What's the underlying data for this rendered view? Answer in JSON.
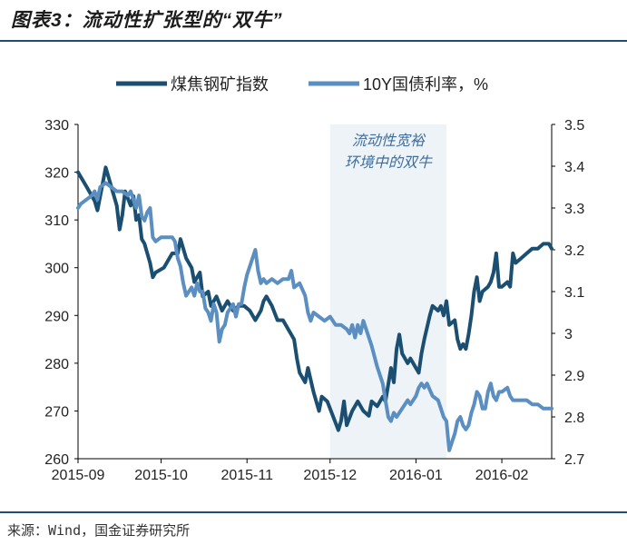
{
  "header": {
    "title": "图表3：流动性扩张型的“双牛”"
  },
  "footer": {
    "source": "来源：Wind，国金证券研究所"
  },
  "chart_data": {
    "type": "line",
    "title": "图表3：流动性扩张型的“双牛”",
    "x_ticks": [
      "2015-09",
      "2015-10",
      "2015-11",
      "2015-12",
      "2016-01",
      "2016-02"
    ],
    "x_tick_days": [
      0,
      30,
      61,
      91,
      122,
      153
    ],
    "y_left": {
      "min": 260,
      "max": 330,
      "step": 10,
      "ticks": [
        "260",
        "270",
        "280",
        "290",
        "300",
        "310",
        "320",
        "330"
      ]
    },
    "y_right": {
      "min": 2.7,
      "max": 3.5,
      "step": 0.1,
      "ticks": [
        "2.7",
        "2.8",
        "2.9",
        "3",
        "3.1",
        "3.2",
        "3.3",
        "3.4",
        "3.5"
      ]
    },
    "x_max_day": 171,
    "highlight": {
      "from_day": 91,
      "to_day": 133,
      "label_line1": "流动性宽裕",
      "label_line2": "环境中的双牛",
      "fill": "#eef3f8",
      "text_color": "#3e6d9c"
    },
    "legend_position": "top",
    "series": [
      {
        "name": "煤焦钢矿指数",
        "axis": "left",
        "color": "#1b4f72",
        "points": [
          [
            0,
            320
          ],
          [
            3,
            317
          ],
          [
            6,
            314
          ],
          [
            7,
            312
          ],
          [
            9,
            318
          ],
          [
            10,
            321
          ],
          [
            12,
            317
          ],
          [
            14,
            313
          ],
          [
            15,
            308
          ],
          [
            16,
            311
          ],
          [
            17,
            316
          ],
          [
            19,
            313
          ],
          [
            20,
            315
          ],
          [
            21,
            310
          ],
          [
            22,
            311
          ],
          [
            23,
            306
          ],
          [
            24,
            305
          ],
          [
            26,
            301
          ],
          [
            27,
            298
          ],
          [
            28,
            299
          ],
          [
            31,
            300
          ],
          [
            34,
            303
          ],
          [
            36,
            303
          ],
          [
            37,
            306
          ],
          [
            38,
            304
          ],
          [
            39,
            302
          ],
          [
            41,
            300
          ],
          [
            42,
            297
          ],
          [
            44,
            299
          ],
          [
            45,
            294
          ],
          [
            47,
            295
          ],
          [
            48,
            292
          ],
          [
            50,
            294
          ],
          [
            52,
            291
          ],
          [
            54,
            293
          ],
          [
            56,
            291
          ],
          [
            58,
            292
          ],
          [
            60,
            292
          ],
          [
            62,
            291
          ],
          [
            64,
            289
          ],
          [
            66,
            291
          ],
          [
            67,
            293
          ],
          [
            68,
            294
          ],
          [
            70,
            292
          ],
          [
            72,
            289
          ],
          [
            74,
            289
          ],
          [
            76,
            287
          ],
          [
            78,
            285
          ],
          [
            79,
            281
          ],
          [
            80,
            278
          ],
          [
            82,
            276
          ],
          [
            83,
            279
          ],
          [
            85,
            274
          ],
          [
            87,
            270
          ],
          [
            88,
            273
          ],
          [
            90,
            272
          ],
          [
            92,
            269
          ],
          [
            94,
            266
          ],
          [
            95,
            268
          ],
          [
            96,
            272
          ],
          [
            97,
            267
          ],
          [
            99,
            270
          ],
          [
            101,
            272
          ],
          [
            103,
            270
          ],
          [
            105,
            269
          ],
          [
            106,
            272
          ],
          [
            108,
            271
          ],
          [
            110,
            273
          ],
          [
            111,
            272
          ],
          [
            113,
            279
          ],
          [
            114,
            276
          ],
          [
            115,
            283
          ],
          [
            116,
            286
          ],
          [
            117,
            282
          ],
          [
            119,
            280
          ],
          [
            120,
            281
          ],
          [
            122,
            279
          ],
          [
            123,
            278
          ],
          [
            124,
            282
          ],
          [
            125,
            285
          ],
          [
            127,
            290
          ],
          [
            128,
            292
          ],
          [
            130,
            291
          ],
          [
            131,
            292
          ],
          [
            132,
            290
          ],
          [
            133,
            293
          ],
          [
            134,
            288
          ],
          [
            136,
            289
          ],
          [
            137,
            285
          ],
          [
            138,
            283
          ],
          [
            139,
            284
          ],
          [
            140,
            283
          ],
          [
            141,
            286
          ],
          [
            142,
            290
          ],
          [
            143,
            295
          ],
          [
            144,
            298
          ],
          [
            145,
            293
          ],
          [
            146,
            295
          ],
          [
            148,
            296
          ],
          [
            149,
            297
          ],
          [
            150,
            299
          ],
          [
            151,
            303
          ],
          [
            152,
            296
          ],
          [
            153,
            296
          ],
          [
            155,
            297
          ],
          [
            156,
            296
          ],
          [
            157,
            303
          ],
          [
            158,
            301
          ],
          [
            160,
            302
          ],
          [
            162,
            303
          ],
          [
            164,
            304
          ],
          [
            166,
            304
          ],
          [
            168,
            305
          ],
          [
            170,
            305
          ],
          [
            171,
            304
          ]
        ]
      },
      {
        "name": "10Y国债利率，%",
        "axis": "right",
        "color": "#5b8ec1",
        "points": [
          [
            0,
            3.3
          ],
          [
            1,
            3.31
          ],
          [
            3,
            3.32
          ],
          [
            5,
            3.33
          ],
          [
            6,
            3.34
          ],
          [
            7,
            3.32
          ],
          [
            8,
            3.35
          ],
          [
            10,
            3.36
          ],
          [
            12,
            3.35
          ],
          [
            14,
            3.34
          ],
          [
            16,
            3.34
          ],
          [
            18,
            3.33
          ],
          [
            19,
            3.34
          ],
          [
            20,
            3.32
          ],
          [
            21,
            3.3
          ],
          [
            22,
            3.33
          ],
          [
            23,
            3.28
          ],
          [
            24,
            3.27
          ],
          [
            25,
            3.29
          ],
          [
            26,
            3.3
          ],
          [
            27,
            3.23
          ],
          [
            28,
            3.22
          ],
          [
            30,
            3.23
          ],
          [
            32,
            3.23
          ],
          [
            34,
            3.23
          ],
          [
            35,
            3.22
          ],
          [
            36,
            3.18
          ],
          [
            37,
            3.16
          ],
          [
            38,
            3.12
          ],
          [
            39,
            3.09
          ],
          [
            40,
            3.1
          ],
          [
            41,
            3.11
          ],
          [
            42,
            3.09
          ],
          [
            43,
            3.12
          ],
          [
            44,
            3.1
          ],
          [
            45,
            3.1
          ],
          [
            46,
            3.06
          ],
          [
            47,
            3.05
          ],
          [
            48,
            3.03
          ],
          [
            49,
            3.07
          ],
          [
            50,
            3.05
          ],
          [
            51,
            2.98
          ],
          [
            52,
            3.01
          ],
          [
            53,
            3.02
          ],
          [
            54,
            3.05
          ],
          [
            56,
            3.07
          ],
          [
            57,
            3.04
          ],
          [
            58,
            3.07
          ],
          [
            59,
            3.07
          ],
          [
            60,
            3.11
          ],
          [
            61,
            3.14
          ],
          [
            62,
            3.16
          ],
          [
            63,
            3.18
          ],
          [
            64,
            3.2
          ],
          [
            65,
            3.15
          ],
          [
            66,
            3.12
          ],
          [
            67,
            3.13
          ],
          [
            68,
            3.12
          ],
          [
            70,
            3.13
          ],
          [
            72,
            3.12
          ],
          [
            74,
            3.13
          ],
          [
            76,
            3.13
          ],
          [
            77,
            3.15
          ],
          [
            78,
            3.11
          ],
          [
            80,
            3.12
          ],
          [
            82,
            3.09
          ],
          [
            83,
            3.05
          ],
          [
            84,
            3.03
          ],
          [
            85,
            3.05
          ],
          [
            87,
            3.04
          ],
          [
            89,
            3.03
          ],
          [
            91,
            3.04
          ],
          [
            93,
            3.02
          ],
          [
            95,
            3.02
          ],
          [
            97,
            3.01
          ],
          [
            98,
            3.0
          ],
          [
            99,
            3.02
          ],
          [
            100,
            2.99
          ],
          [
            101,
            3.02
          ],
          [
            102,
            3.0
          ],
          [
            103,
            3.03
          ],
          [
            104,
            3.01
          ],
          [
            106,
            2.97
          ],
          [
            108,
            2.92
          ],
          [
            110,
            2.88
          ],
          [
            111,
            2.84
          ],
          [
            112,
            2.8
          ],
          [
            113,
            2.79
          ],
          [
            114,
            2.81
          ],
          [
            115,
            2.8
          ],
          [
            117,
            2.82
          ],
          [
            119,
            2.84
          ],
          [
            120,
            2.83
          ],
          [
            122,
            2.85
          ],
          [
            123,
            2.87
          ],
          [
            124,
            2.88
          ],
          [
            125,
            2.87
          ],
          [
            126,
            2.88
          ],
          [
            128,
            2.85
          ],
          [
            130,
            2.84
          ],
          [
            131,
            2.82
          ],
          [
            132,
            2.8
          ],
          [
            133,
            2.79
          ],
          [
            134,
            2.72
          ],
          [
            135,
            2.74
          ],
          [
            136,
            2.76
          ],
          [
            137,
            2.79
          ],
          [
            138,
            2.8
          ],
          [
            139,
            2.78
          ],
          [
            140,
            2.77
          ],
          [
            141,
            2.78
          ],
          [
            142,
            2.81
          ],
          [
            143,
            2.83
          ],
          [
            144,
            2.86
          ],
          [
            145,
            2.85
          ],
          [
            146,
            2.82
          ],
          [
            147,
            2.82
          ],
          [
            148,
            2.86
          ],
          [
            149,
            2.88
          ],
          [
            150,
            2.85
          ],
          [
            151,
            2.84
          ],
          [
            152,
            2.86
          ],
          [
            153,
            2.86
          ],
          [
            155,
            2.87
          ],
          [
            156,
            2.85
          ],
          [
            157,
            2.84
          ],
          [
            158,
            2.84
          ],
          [
            160,
            2.84
          ],
          [
            162,
            2.84
          ],
          [
            164,
            2.83
          ],
          [
            166,
            2.83
          ],
          [
            168,
            2.82
          ],
          [
            170,
            2.82
          ],
          [
            171,
            2.82
          ]
        ]
      }
    ]
  }
}
